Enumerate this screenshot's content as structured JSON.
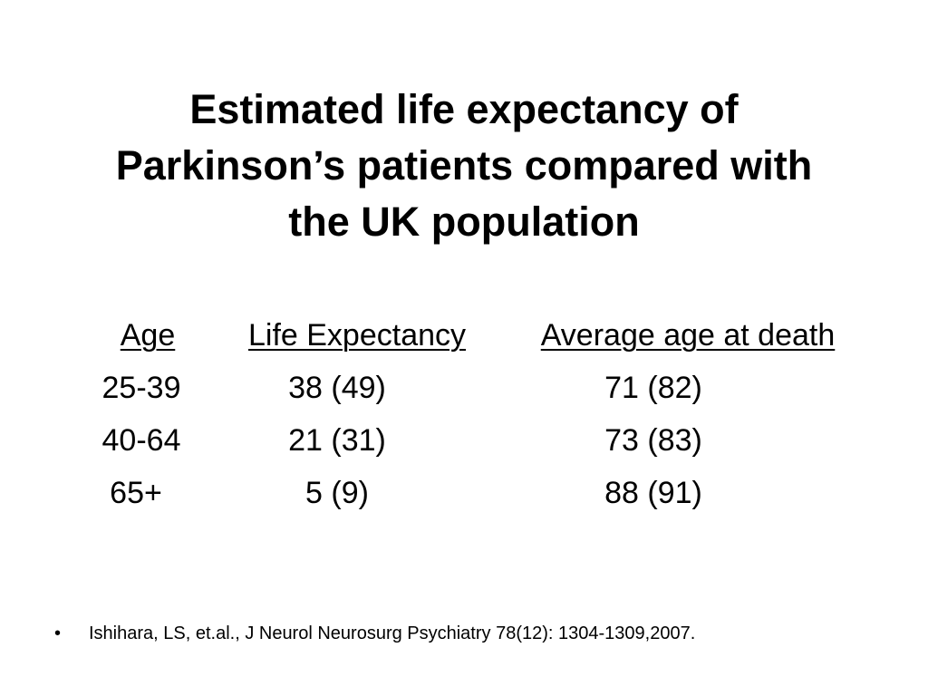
{
  "slide": {
    "title_lines": [
      "Estimated life expectancy of",
      "Parkinson’s patients compared with",
      "the UK population"
    ],
    "table": {
      "headers": [
        "Age",
        "Life Expectancy",
        "Average age at death"
      ],
      "rows": [
        [
          "25-39",
          "38 (49)",
          "71 (82)"
        ],
        [
          "40-64",
          "21 (31)",
          "73 (83)"
        ],
        [
          "65+",
          "5 (9)",
          "88 (91)"
        ]
      ]
    },
    "reference": {
      "bullet": "•",
      "text": "Ishihara, LS, et.al., J Neurol Neurosurg Psychiatry 78(12): 1304-1309,2007."
    }
  }
}
